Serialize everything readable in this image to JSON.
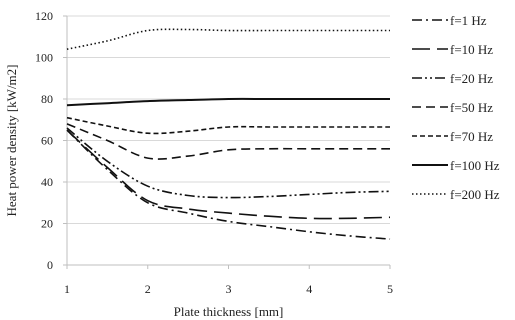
{
  "chart_data": {
    "type": "line",
    "xlabel": "Plate thickness [mm]",
    "ylabel": "Heat power density [kW/m2]",
    "xlim": [
      1,
      5
    ],
    "ylim": [
      0,
      120
    ],
    "xticks": [
      "1",
      "2",
      "3",
      "4",
      "5"
    ],
    "yticks": [
      "0",
      "20",
      "40",
      "60",
      "80",
      "100",
      "120"
    ],
    "grid": "horizontal",
    "legend_position": "right",
    "x": [
      1,
      1.5,
      2,
      2.5,
      3,
      3.5,
      4,
      4.5,
      5
    ],
    "series": [
      {
        "name": "f=1 Hz",
        "values": [
          65,
          46,
          30,
          25,
          21,
          18.5,
          16,
          14,
          12.5
        ],
        "color": "#111111",
        "dash": "dashdot"
      },
      {
        "name": "f=10 Hz",
        "values": [
          65,
          47,
          31,
          27,
          25,
          23.5,
          22.5,
          22.5,
          23
        ],
        "color": "#111111",
        "dash": "longdash"
      },
      {
        "name": "f=20 Hz",
        "values": [
          66,
          50,
          38,
          33.5,
          32.5,
          33,
          34,
          35,
          35.5
        ],
        "color": "#111111",
        "dash": "dashdotdot"
      },
      {
        "name": "f=50 Hz",
        "values": [
          68,
          60,
          51.5,
          52.5,
          55.5,
          56,
          56,
          56,
          56
        ],
        "color": "#111111",
        "dash": "dash"
      },
      {
        "name": "f=70 Hz",
        "values": [
          71,
          67,
          63.5,
          64.5,
          66.5,
          66.5,
          66.5,
          66.5,
          66.5
        ],
        "color": "#111111",
        "dash": "shortdash"
      },
      {
        "name": "f=100 Hz",
        "values": [
          77,
          78,
          79,
          79.5,
          80,
          80,
          80,
          80,
          80
        ],
        "color": "#111111",
        "dash": "solid"
      },
      {
        "name": "f=200 Hz",
        "values": [
          104,
          108,
          113,
          113.5,
          113,
          113,
          113,
          113,
          113
        ],
        "color": "#111111",
        "dash": "dotted"
      }
    ]
  }
}
